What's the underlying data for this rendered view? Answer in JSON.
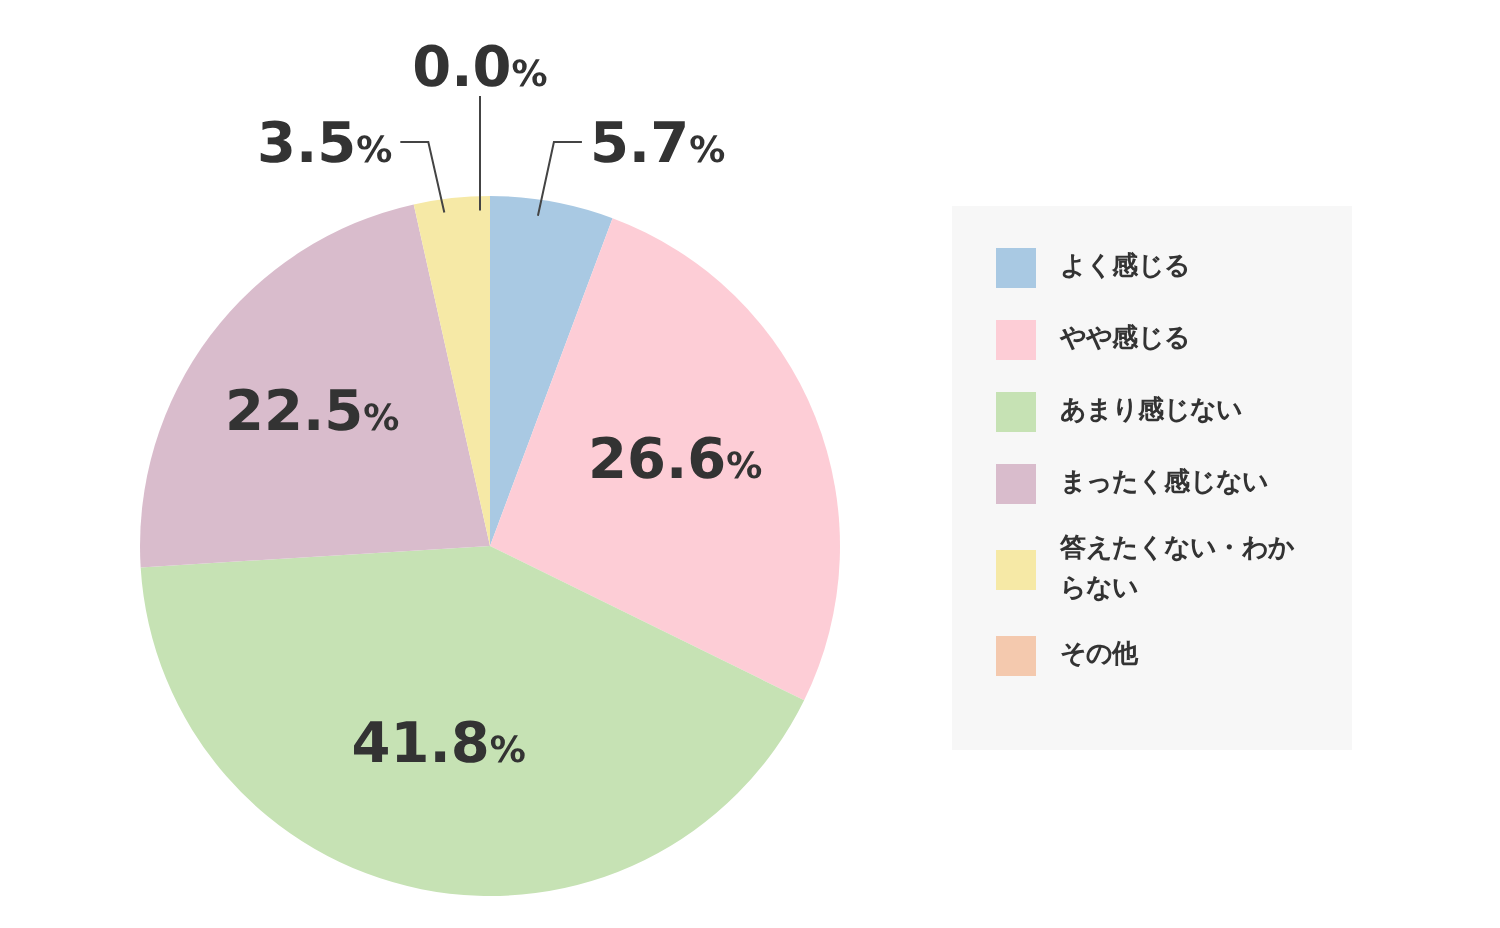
{
  "chart_data": {
    "type": "pie",
    "categories": [
      "よく感じる",
      "やや感じる",
      "あまり感じない",
      "まったく感じない",
      "答えたくない・わからない",
      "その他"
    ],
    "values": [
      5.7,
      26.6,
      41.8,
      22.5,
      3.5,
      0.0
    ],
    "value_labels": [
      "5.7%",
      "26.6%",
      "41.8%",
      "22.5%",
      "3.5%",
      "0.0%"
    ],
    "colors": [
      "#a9c9e3",
      "#fdcdd6",
      "#c6e2b4",
      "#d9bccc",
      "#f6e9a6",
      "#f4c9ae"
    ],
    "legend": "right"
  }
}
